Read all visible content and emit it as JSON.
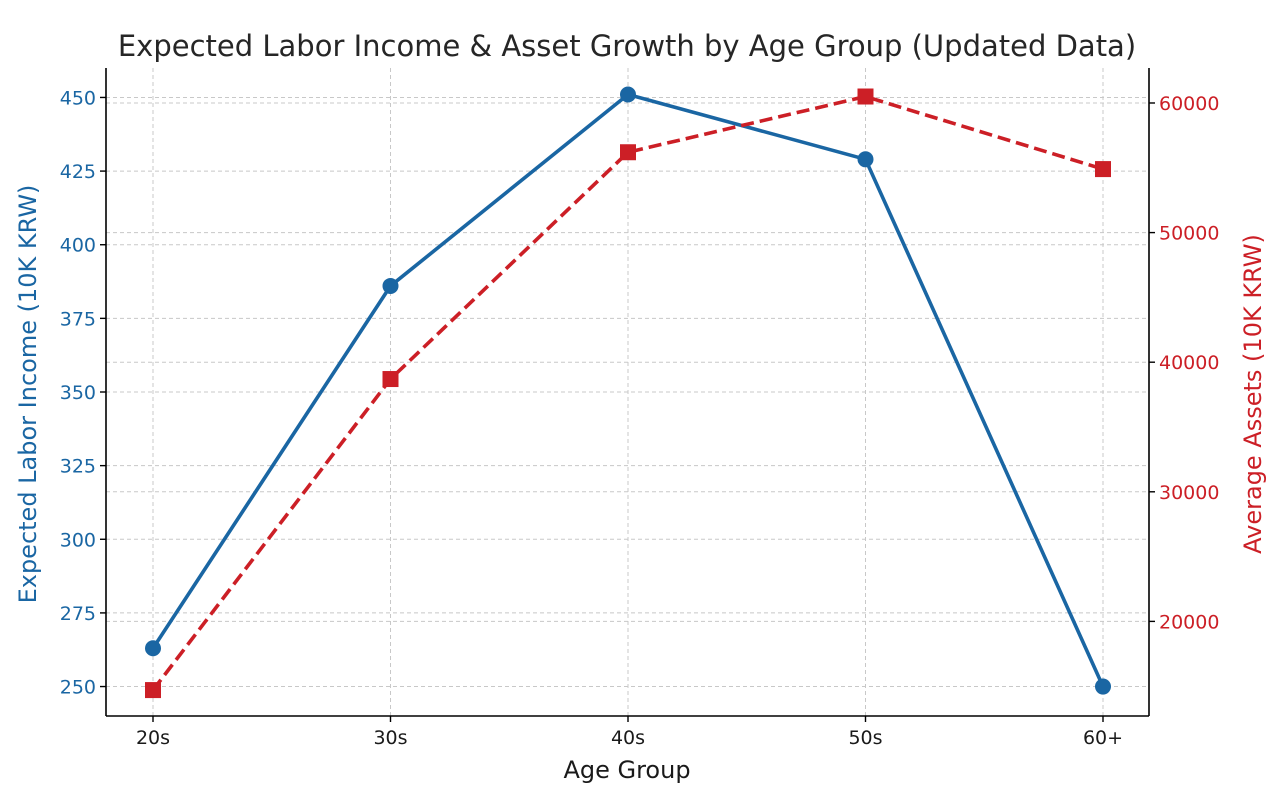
{
  "chart_data": {
    "type": "line",
    "title": "Expected Labor Income & Asset Growth by Age Group (Updated Data)",
    "xlabel": "Age Group",
    "categories": [
      "20s",
      "30s",
      "40s",
      "50s",
      "60+"
    ],
    "y_left": {
      "label": "Expected Labor Income (10K KRW)",
      "range": [
        240,
        460
      ],
      "ticks": [
        250,
        275,
        300,
        325,
        350,
        375,
        400,
        425,
        450
      ],
      "tick_labels": [
        "250",
        "275",
        "300",
        "325",
        "350",
        "375",
        "400",
        "425",
        "450"
      ],
      "color": "#1a66a3"
    },
    "y_right": {
      "label": "Average Assets (10K KRW)",
      "range": [
        12700,
        62700
      ],
      "ticks": [
        20000,
        30000,
        40000,
        50000,
        60000
      ],
      "tick_labels": [
        "20000",
        "30000",
        "40000",
        "50000",
        "60000"
      ],
      "color": "#cc1f26"
    },
    "grid": true,
    "series": [
      {
        "axis": "left",
        "values": [
          263,
          386,
          451,
          429,
          250
        ],
        "color": "#1a66a3",
        "line_style": "solid",
        "marker": "circle"
      },
      {
        "axis": "right",
        "values": [
          14700,
          38700,
          56200,
          60500,
          54900
        ],
        "color": "#cc1f26",
        "line_style": "dashed",
        "marker": "square"
      }
    ]
  }
}
